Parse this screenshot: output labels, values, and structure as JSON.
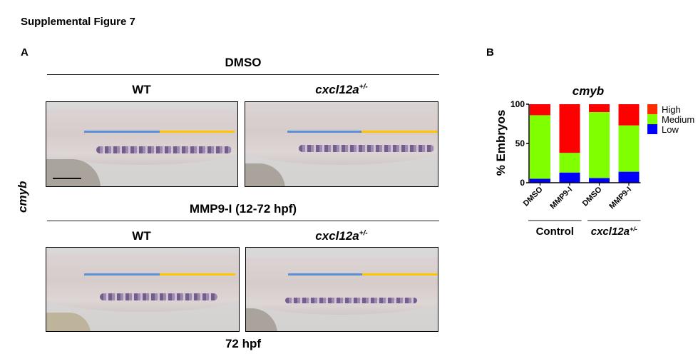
{
  "figure": {
    "title": "Supplemental Figure 7",
    "panel_a_label": "A",
    "panel_b_label": "B"
  },
  "panel_a": {
    "gene_label": "cmyb",
    "rows": [
      {
        "treatment": "DMSO",
        "columns": [
          {
            "genotype": "WT",
            "superscript": ""
          },
          {
            "genotype": "cxcl12a",
            "superscript": "+/-"
          }
        ]
      },
      {
        "treatment": "MMP9-I (12-72 hpf)",
        "columns": [
          {
            "genotype": "WT",
            "superscript": ""
          },
          {
            "genotype": "cxcl12a",
            "superscript": "+/-"
          }
        ]
      }
    ],
    "footer": "72 hpf",
    "colors": {
      "line_segment_1": "#5b8fd6",
      "line_segment_2": "#ffc500"
    }
  },
  "chart_data": {
    "type": "bar",
    "stacked": true,
    "title": "cmyb",
    "xlabel": "",
    "ylabel": "% Embryos",
    "ylim": [
      0,
      100
    ],
    "yticks": [
      0,
      50,
      100
    ],
    "categories": [
      "DMSO",
      "MMP9-I",
      "DMSO",
      "MMP9-I"
    ],
    "groups": [
      {
        "label": "Control",
        "superscript": "",
        "italic": false,
        "categories": [
          0,
          1
        ]
      },
      {
        "label": "cxcl12a",
        "superscript": "+/-",
        "italic": true,
        "categories": [
          2,
          3
        ]
      }
    ],
    "series": [
      {
        "name": "Low",
        "color": "#0000ff",
        "values": [
          5,
          13,
          6,
          14
        ]
      },
      {
        "name": "Medium",
        "color": "#80ff00",
        "values": [
          81,
          25,
          84,
          59
        ]
      },
      {
        "name": "High",
        "color": "#ff0000",
        "values": [
          14,
          62,
          10,
          27
        ]
      }
    ],
    "legend": {
      "entries": [
        "High",
        "Medium",
        "Low"
      ],
      "colors": [
        "#ff2a00",
        "#80ff00",
        "#0000ff"
      ],
      "position": "right"
    },
    "grid": false
  }
}
